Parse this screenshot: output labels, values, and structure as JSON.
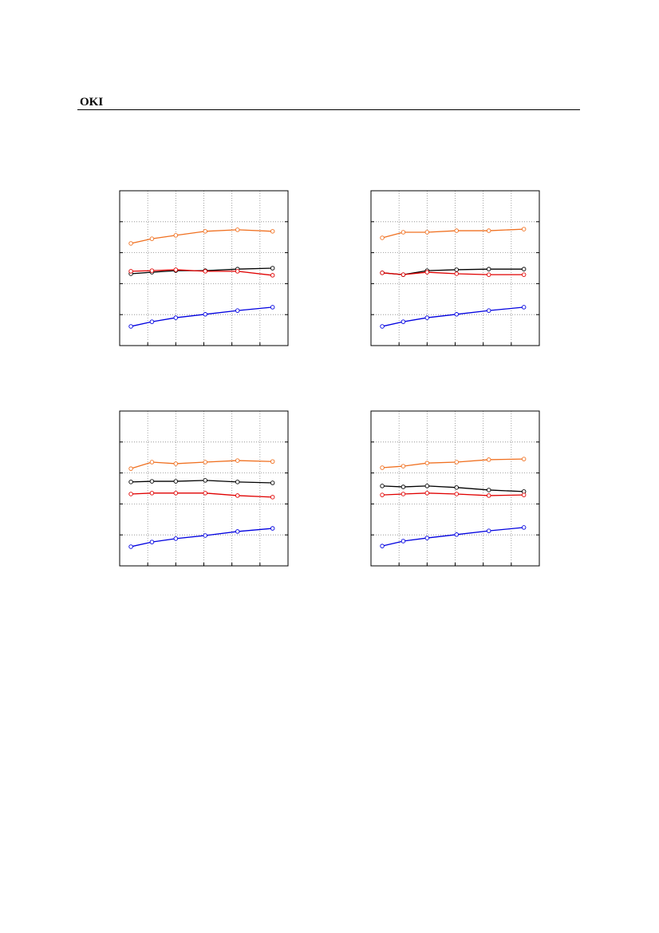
{
  "header": {
    "logo": "OKI"
  },
  "chart_data": [
    {
      "type": "line",
      "xlim": [
        0,
        6
      ],
      "ylim": [
        0,
        5
      ],
      "xticks": [
        0,
        1,
        2,
        3,
        4,
        5,
        6
      ],
      "yticks": [
        0,
        1,
        2,
        3,
        4,
        5
      ],
      "grid": true,
      "x": [
        0.4,
        1.15,
        2,
        3.05,
        4.2,
        5.45
      ],
      "series": [
        {
          "color": "#f07020",
          "values": [
            3.3,
            3.45,
            3.56,
            3.69,
            3.74,
            3.69
          ]
        },
        {
          "color": "#000000",
          "values": [
            2.32,
            2.37,
            2.42,
            2.42,
            2.47,
            2.5
          ]
        },
        {
          "color": "#e00000",
          "values": [
            2.4,
            2.42,
            2.45,
            2.4,
            2.4,
            2.27
          ]
        },
        {
          "color": "#0000e0",
          "values": [
            0.62,
            0.77,
            0.9,
            1.01,
            1.13,
            1.24
          ]
        }
      ]
    },
    {
      "type": "line",
      "xlim": [
        0,
        6
      ],
      "ylim": [
        0,
        5
      ],
      "xticks": [
        0,
        1,
        2,
        3,
        4,
        5,
        6
      ],
      "yticks": [
        0,
        1,
        2,
        3,
        4,
        5
      ],
      "grid": true,
      "x": [
        0.4,
        1.15,
        2,
        3.05,
        4.2,
        5.45
      ],
      "series": [
        {
          "color": "#f07020",
          "values": [
            3.48,
            3.66,
            3.66,
            3.71,
            3.71,
            3.76
          ]
        },
        {
          "color": "#000000",
          "values": [
            2.35,
            2.29,
            2.42,
            2.45,
            2.47,
            2.47
          ]
        },
        {
          "color": "#e00000",
          "values": [
            2.35,
            2.29,
            2.37,
            2.32,
            2.29,
            2.29
          ]
        },
        {
          "color": "#0000e0",
          "values": [
            0.62,
            0.77,
            0.9,
            1.01,
            1.13,
            1.24
          ]
        }
      ]
    },
    {
      "type": "line",
      "xlim": [
        0,
        6
      ],
      "ylim": [
        0,
        5
      ],
      "xticks": [
        0,
        1,
        2,
        3,
        4,
        5,
        6
      ],
      "yticks": [
        0,
        1,
        2,
        3,
        4,
        5
      ],
      "grid": true,
      "x": [
        0.4,
        1.15,
        2,
        3.05,
        4.2,
        5.45
      ],
      "series": [
        {
          "color": "#f07020",
          "values": [
            3.14,
            3.35,
            3.3,
            3.35,
            3.4,
            3.37
          ]
        },
        {
          "color": "#000000",
          "values": [
            2.71,
            2.73,
            2.73,
            2.76,
            2.71,
            2.68
          ]
        },
        {
          "color": "#e00000",
          "values": [
            2.32,
            2.35,
            2.35,
            2.35,
            2.27,
            2.22
          ]
        },
        {
          "color": "#0000e0",
          "values": [
            0.62,
            0.77,
            0.88,
            0.98,
            1.11,
            1.21
          ]
        }
      ]
    },
    {
      "type": "line",
      "xlim": [
        0,
        6
      ],
      "ylim": [
        0,
        5
      ],
      "xticks": [
        0,
        1,
        2,
        3,
        4,
        5,
        6
      ],
      "yticks": [
        0,
        1,
        2,
        3,
        4,
        5
      ],
      "grid": true,
      "x": [
        0.4,
        1.15,
        2,
        3.05,
        4.2,
        5.45
      ],
      "series": [
        {
          "color": "#f07020",
          "values": [
            3.17,
            3.22,
            3.32,
            3.35,
            3.43,
            3.45
          ]
        },
        {
          "color": "#000000",
          "values": [
            2.58,
            2.55,
            2.58,
            2.53,
            2.45,
            2.4
          ]
        },
        {
          "color": "#e00000",
          "values": [
            2.29,
            2.32,
            2.35,
            2.32,
            2.27,
            2.29
          ]
        },
        {
          "color": "#0000e0",
          "values": [
            0.64,
            0.8,
            0.9,
            1.01,
            1.13,
            1.24
          ]
        }
      ]
    }
  ]
}
